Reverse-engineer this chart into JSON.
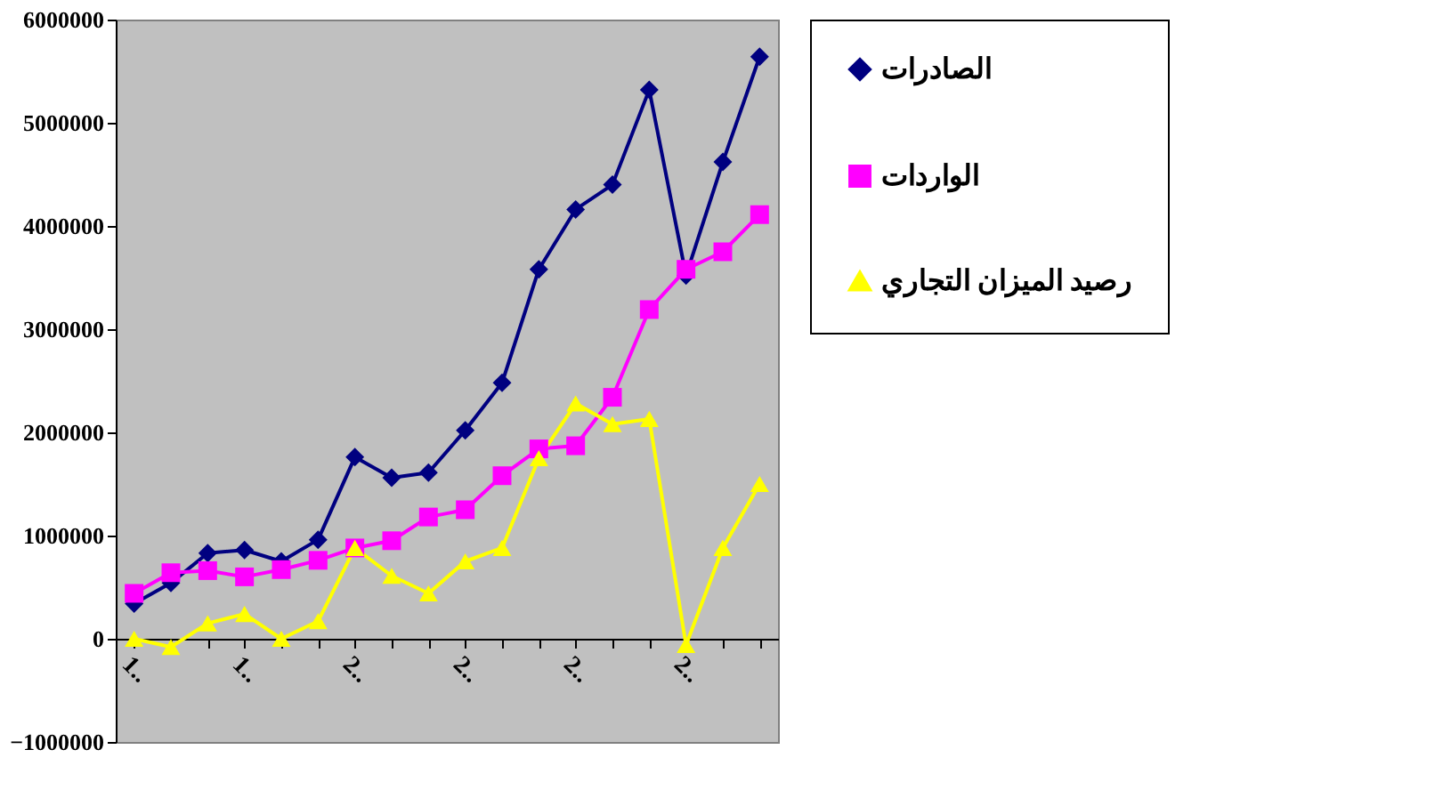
{
  "chart_data": {
    "type": "line",
    "categories": [
      "1..",
      null,
      null,
      "1..",
      null,
      null,
      "2..",
      null,
      null,
      "2..",
      null,
      null,
      "2..",
      null,
      null,
      "2..",
      null,
      null
    ],
    "series": [
      {
        "name": "الصادرات",
        "color": "#000080",
        "marker": "diamond",
        "values": [
          340000,
          540000,
          830000,
          860000,
          750000,
          960000,
          1760000,
          1560000,
          1610000,
          2020000,
          2480000,
          3580000,
          4160000,
          4400000,
          5320000,
          3520000,
          4620000,
          5640000
        ]
      },
      {
        "name": "الواردات",
        "color": "#ff00ff",
        "marker": "square",
        "values": [
          440000,
          640000,
          660000,
          600000,
          670000,
          760000,
          880000,
          950000,
          1180000,
          1250000,
          1580000,
          1840000,
          1870000,
          2340000,
          3190000,
          3580000,
          3750000,
          4110000
        ]
      },
      {
        "name": "رصيد الميزان التجاري",
        "color": "#ffff00",
        "marker": "triangle",
        "values": [
          0,
          -80000,
          150000,
          240000,
          0,
          170000,
          880000,
          610000,
          440000,
          750000,
          880000,
          1750000,
          2280000,
          2080000,
          2130000,
          -60000,
          880000,
          1500000
        ]
      }
    ],
    "ylim": [
      -1000000,
      6000000
    ],
    "yticks": [
      -1000000,
      0,
      1000000,
      2000000,
      3000000,
      4000000,
      5000000,
      6000000
    ],
    "grid": false,
    "legend": "right",
    "line_style": "solid"
  }
}
